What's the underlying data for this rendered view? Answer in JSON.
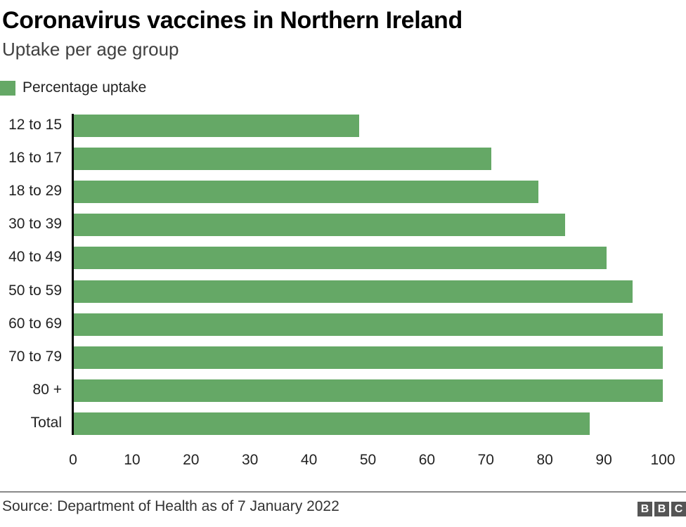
{
  "header": {
    "title": "Coronavirus vaccines in Northern Ireland",
    "subtitle": "Uptake per age group"
  },
  "legend": {
    "label": "Percentage uptake",
    "color": "#65a866"
  },
  "footer": {
    "source": "Source: Department of Health as of 7 January 2022",
    "logo_letters": [
      "B",
      "B",
      "C"
    ]
  },
  "chart_data": {
    "type": "bar",
    "orientation": "horizontal",
    "title": "Coronavirus vaccines in Northern Ireland",
    "subtitle": "Uptake per age group",
    "xlabel": "",
    "ylabel": "",
    "xlim": [
      0,
      100
    ],
    "xticks": [
      "0",
      "10",
      "20",
      "30",
      "40",
      "50",
      "60",
      "70",
      "80",
      "90",
      "100"
    ],
    "grid": false,
    "legend_position": "top-left",
    "categories": [
      "12 to 15",
      "16 to 17",
      "18 to 29",
      "30 to 39",
      "40 to 49",
      "50 to 59",
      "60 to 69",
      "70 to 79",
      "80 +",
      "Total"
    ],
    "series": [
      {
        "name": "Percentage uptake",
        "color": "#65a866",
        "values": [
          48.5,
          70.9,
          78.9,
          83.4,
          90.5,
          94.9,
          100,
          100,
          100,
          87.6
        ]
      }
    ]
  }
}
